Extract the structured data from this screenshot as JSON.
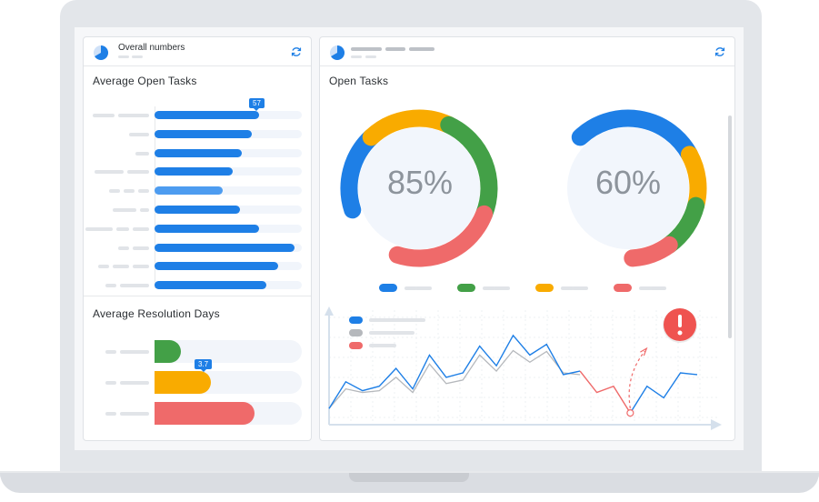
{
  "colors": {
    "blue": "#1e7fe6",
    "light_blue": "#4d9cf0",
    "green": "#43a047",
    "yellow": "#f9ab00",
    "red": "#ef6a6a",
    "grey": "#b5b8bc"
  },
  "left_card": {
    "title": "Overall numbers",
    "icons": [
      "pie-chart-icon",
      "refresh-icon"
    ],
    "open_tasks": {
      "title": "Average Open Tasks",
      "badge": "57",
      "bars": [
        0.71,
        0.66,
        0.59,
        0.53,
        0.46,
        0.58,
        0.71,
        0.95,
        0.84,
        0.76
      ]
    },
    "resolution": {
      "title": "Average Resolution Days",
      "badge": "3.7",
      "bars": [
        {
          "fraction": 0.18,
          "color": "green"
        },
        {
          "fraction": 0.38,
          "color": "yellow"
        },
        {
          "fraction": 0.68,
          "color": "red"
        }
      ]
    }
  },
  "right_card": {
    "icons": [
      "pie-chart-icon",
      "refresh-icon"
    ],
    "title": "Open Tasks",
    "donuts": [
      {
        "label": "85%",
        "segments": [
          {
            "color": "blue",
            "from": 0.7,
            "to": 0.88
          },
          {
            "color": "yellow",
            "from": 0.88,
            "to": 1.07
          },
          {
            "color": "green",
            "from": 1.07,
            "to": 1.31
          },
          {
            "color": "red",
            "from": 1.31,
            "to": 1.55
          }
        ]
      },
      {
        "label": "60%",
        "segments": [
          {
            "color": "blue",
            "from": 0.88,
            "to": 1.17
          },
          {
            "color": "yellow",
            "from": 1.17,
            "to": 1.29
          },
          {
            "color": "green",
            "from": 1.29,
            "to": 1.4
          },
          {
            "color": "red",
            "from": 1.4,
            "to": 1.49
          }
        ]
      }
    ],
    "legend": [
      "blue",
      "green",
      "yellow",
      "red"
    ],
    "line_chart": {
      "series": [
        {
          "color": "blue",
          "values": [
            0.1,
            0.4,
            0.3,
            0.35,
            0.55,
            0.32,
            0.7,
            0.45,
            0.5,
            0.8,
            0.58,
            0.92,
            0.7,
            0.82,
            0.48,
            0.52,
            0.28,
            0.35,
            0.05,
            0.35,
            0.22,
            0.5,
            0.48
          ]
        },
        {
          "color": "grey",
          "values": [
            0.1,
            0.32,
            0.28,
            0.3,
            0.45,
            0.28,
            0.6,
            0.38,
            0.42,
            0.7,
            0.52,
            0.75,
            0.62,
            0.74,
            0.5,
            0.48
          ]
        }
      ],
      "alert_icon": "exclamation-icon"
    }
  }
}
